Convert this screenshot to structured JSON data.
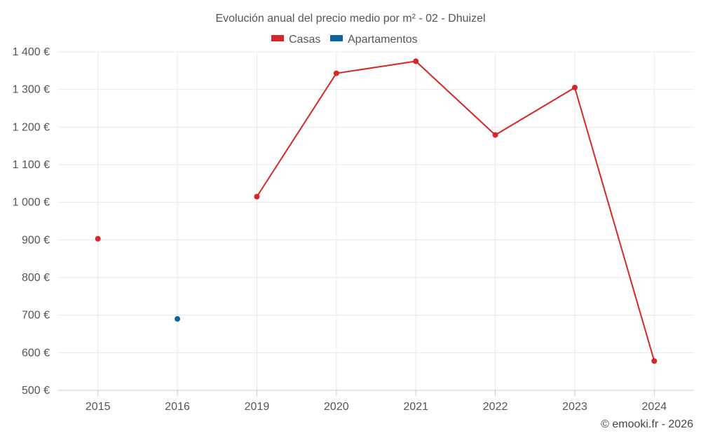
{
  "chart_data": {
    "type": "line",
    "title": "Evolución anual del precio medio por m² - 02 - Dhuizel",
    "categories": [
      "2015",
      "2016",
      "2019",
      "2020",
      "2021",
      "2022",
      "2023",
      "2024"
    ],
    "series": [
      {
        "name": "Casas",
        "color": "#d62728",
        "values": [
          903,
          null,
          1015,
          1343,
          1375,
          1179,
          1305,
          578
        ]
      },
      {
        "name": "Apartamentos",
        "color": "#0b64a0",
        "values": [
          null,
          690,
          null,
          null,
          null,
          null,
          null,
          null
        ]
      }
    ],
    "ylim": [
      500,
      1400
    ],
    "yticks": [
      500,
      600,
      700,
      800,
      900,
      1000,
      1100,
      1200,
      1300,
      1400
    ],
    "ytick_labels": [
      "500 €",
      "600 €",
      "700 €",
      "800 €",
      "900 €",
      "1 000 €",
      "1 100 €",
      "1 200 €",
      "1 300 €",
      "1 400 €"
    ],
    "xlabel": "",
    "ylabel": "",
    "legend": "top-center",
    "grid": true,
    "credit": "© emooki.fr - 2026"
  }
}
